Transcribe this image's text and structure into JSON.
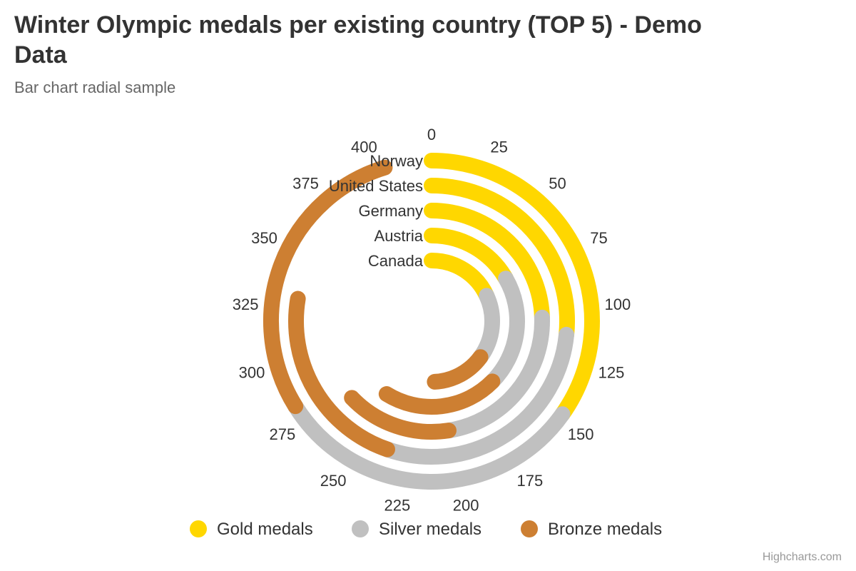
{
  "title": "Winter Olympic medals per existing country (TOP 5) - Demo Data",
  "subtitle": "Bar chart radial sample",
  "credits": "Highcharts.com",
  "chart_data": {
    "type": "bar",
    "polar": true,
    "stacking": "normal",
    "categories": [
      "Norway",
      "United States",
      "Germany",
      "Austria",
      "Canada"
    ],
    "series": [
      {
        "name": "Gold medals",
        "color": "#ffd700",
        "values": [
          148,
          113,
          104,
          71,
          77
        ]
      },
      {
        "name": "Silver medals",
        "color": "#c0c0c0",
        "values": [
          133,
          122,
          98,
          88,
          72
        ]
      },
      {
        "name": "Bronze medals",
        "color": "#cd7f32",
        "values": [
          124,
          95,
          65,
          91,
          60
        ]
      }
    ],
    "value_axis": {
      "min": 0,
      "max": 425,
      "tick_interval": 25,
      "tick_labels": [
        "0",
        "25",
        "50",
        "75",
        "100",
        "125",
        "150",
        "175",
        "200",
        "225",
        "250",
        "275",
        "300",
        "325",
        "350",
        "375",
        "400"
      ]
    },
    "legend_placement": "bottom"
  }
}
